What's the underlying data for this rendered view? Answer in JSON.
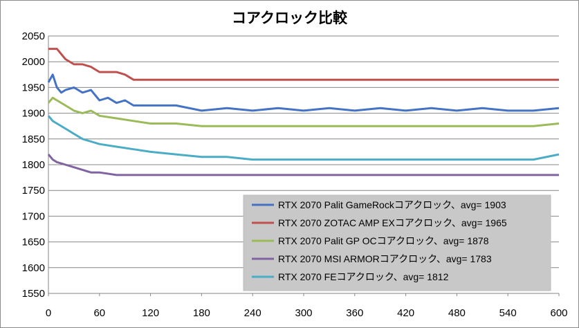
{
  "chart_data": {
    "type": "line",
    "title": "コアクロック比較",
    "xlabel": "",
    "ylabel": "",
    "xlim": [
      0,
      600
    ],
    "ylim": [
      1550,
      2050
    ],
    "x_ticks": [
      0,
      60,
      120,
      180,
      240,
      300,
      360,
      420,
      480,
      540,
      600
    ],
    "y_ticks": [
      1550,
      1600,
      1650,
      1700,
      1750,
      1800,
      1850,
      1900,
      1950,
      2000,
      2050
    ],
    "grid": "horizontal",
    "legend_position": "bottom-right",
    "series": [
      {
        "name": "RTX 2070 Palit GameRockコアクロック、avg= 1903",
        "color": "#4472C4",
        "x": [
          0,
          5,
          10,
          15,
          20,
          30,
          40,
          50,
          60,
          70,
          80,
          90,
          100,
          120,
          150,
          180,
          210,
          240,
          270,
          300,
          330,
          360,
          390,
          420,
          450,
          480,
          510,
          540,
          570,
          600
        ],
        "y": [
          1960,
          1975,
          1950,
          1940,
          1945,
          1950,
          1940,
          1945,
          1925,
          1930,
          1920,
          1925,
          1915,
          1915,
          1915,
          1905,
          1910,
          1905,
          1910,
          1905,
          1910,
          1905,
          1910,
          1905,
          1910,
          1905,
          1910,
          1905,
          1905,
          1910
        ]
      },
      {
        "name": "RTX 2070 ZOTAC AMP EXコアクロック、avg= 1965",
        "color": "#C0504D",
        "x": [
          0,
          10,
          20,
          30,
          40,
          50,
          60,
          70,
          80,
          90,
          100,
          120,
          180,
          240,
          300,
          360,
          420,
          480,
          540,
          600
        ],
        "y": [
          2025,
          2025,
          2005,
          1995,
          1995,
          1990,
          1980,
          1980,
          1980,
          1975,
          1965,
          1965,
          1965,
          1965,
          1965,
          1965,
          1965,
          1965,
          1965,
          1965
        ]
      },
      {
        "name": "RTX 2070 Palit GP OCコアクロック、avg= 1878",
        "color": "#9BBB59",
        "x": [
          0,
          5,
          10,
          20,
          30,
          40,
          50,
          60,
          80,
          100,
          120,
          150,
          180,
          210,
          240,
          270,
          300,
          330,
          360,
          390,
          420,
          450,
          480,
          510,
          540,
          570,
          600
        ],
        "y": [
          1920,
          1930,
          1925,
          1915,
          1905,
          1900,
          1905,
          1895,
          1890,
          1885,
          1880,
          1880,
          1875,
          1875,
          1875,
          1875,
          1875,
          1875,
          1875,
          1875,
          1875,
          1875,
          1875,
          1875,
          1875,
          1875,
          1880
        ]
      },
      {
        "name": "RTX 2070 MSI ARMORコアクロック、avg= 1783",
        "color": "#8064A2",
        "x": [
          0,
          5,
          10,
          20,
          30,
          40,
          50,
          60,
          80,
          100,
          120,
          150,
          180,
          210,
          240,
          270,
          300,
          330,
          360,
          390,
          420,
          450,
          480,
          510,
          540,
          570,
          600
        ],
        "y": [
          1820,
          1810,
          1805,
          1800,
          1795,
          1790,
          1785,
          1785,
          1780,
          1780,
          1780,
          1780,
          1780,
          1780,
          1780,
          1780,
          1780,
          1780,
          1780,
          1780,
          1780,
          1780,
          1780,
          1780,
          1780,
          1780,
          1780
        ]
      },
      {
        "name": "RTX 2070 FEコアクロック、avg= 1812",
        "color": "#4BACC6",
        "x": [
          0,
          5,
          10,
          20,
          30,
          40,
          50,
          60,
          80,
          100,
          120,
          150,
          180,
          210,
          240,
          270,
          300,
          330,
          360,
          390,
          420,
          450,
          480,
          510,
          540,
          570,
          600
        ],
        "y": [
          1895,
          1885,
          1880,
          1870,
          1860,
          1850,
          1845,
          1840,
          1835,
          1830,
          1825,
          1820,
          1815,
          1815,
          1810,
          1810,
          1810,
          1810,
          1810,
          1810,
          1810,
          1810,
          1810,
          1810,
          1810,
          1810,
          1820
        ]
      }
    ]
  }
}
